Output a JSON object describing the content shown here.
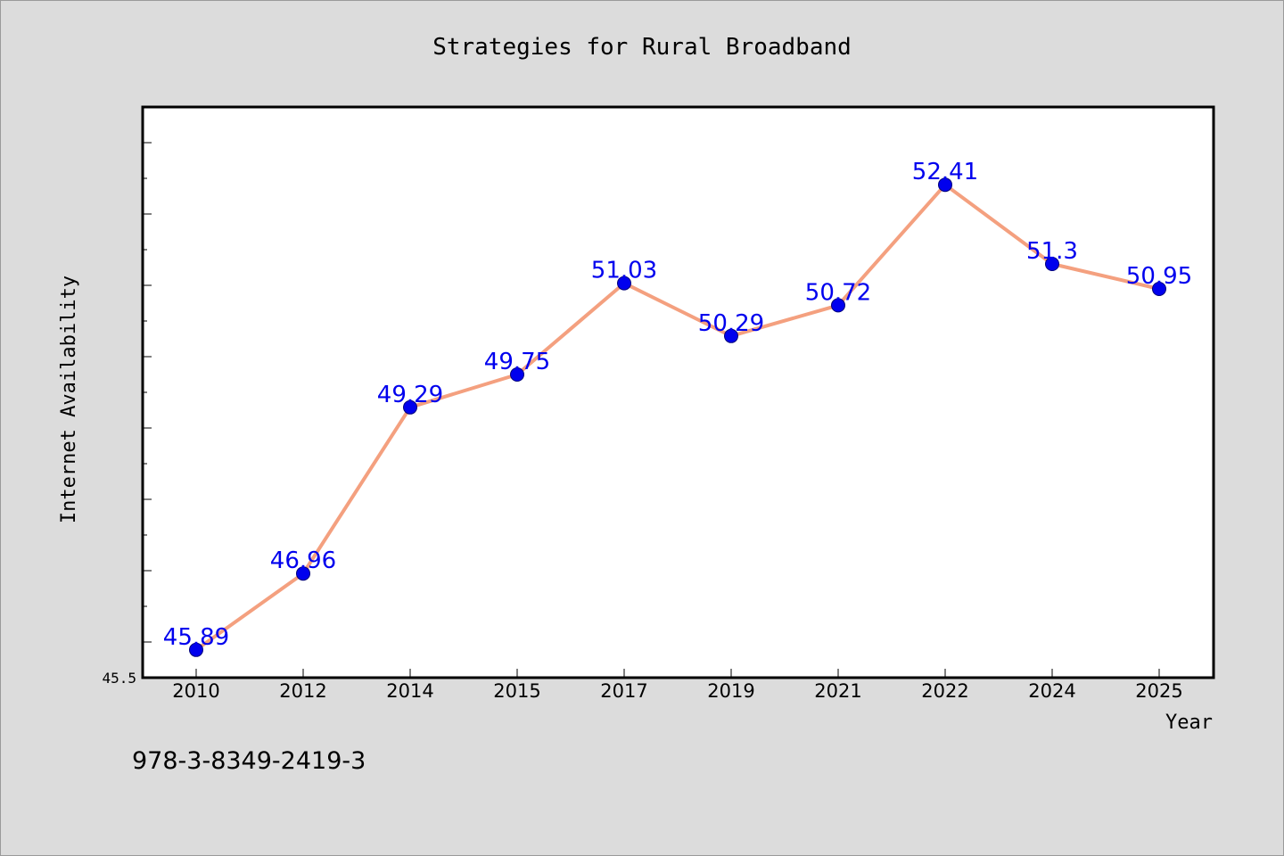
{
  "chart_data": {
    "type": "line",
    "title": "Strategies for Rural Broadband",
    "xlabel": "Year",
    "ylabel": "Internet Availability",
    "categories": [
      "2010",
      "2012",
      "2014",
      "2015",
      "2017",
      "2019",
      "2021",
      "2022",
      "2024",
      "2025"
    ],
    "series": [
      {
        "values": [
          45.89,
          46.96,
          49.29,
          49.75,
          51.03,
          50.29,
          50.72,
          52.41,
          51.3,
          50.95
        ],
        "value_labels": [
          "45.89",
          "46.96",
          "49.29",
          "49.75",
          "51.03",
          "50.29",
          "50.72",
          "52.41",
          "51.3",
          "50.95"
        ]
      }
    ],
    "ylim": [
      45.5,
      53.5
    ],
    "y_tick_label": "45.5",
    "grid": false,
    "legend": "none"
  },
  "annotation": "978-3-8349-2419-3",
  "colors": {
    "background": "#dcdcdc",
    "plot_background": "#ffffff",
    "line": "#f4a07f",
    "marker": "#0000ee",
    "data_label": "#0000ee"
  }
}
